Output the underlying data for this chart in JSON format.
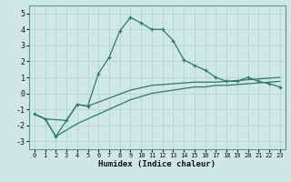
{
  "xlabel": "Humidex (Indice chaleur)",
  "bg_color": "#cfe8e4",
  "grid_color": "#b8d8d4",
  "line_color": "#2d7a6a",
  "xlim": [
    -0.5,
    23.5
  ],
  "ylim": [
    -3.5,
    5.5
  ],
  "xticks": [
    0,
    1,
    2,
    3,
    4,
    5,
    6,
    7,
    8,
    9,
    10,
    11,
    12,
    13,
    14,
    15,
    16,
    17,
    18,
    19,
    20,
    21,
    22,
    23
  ],
  "yticks": [
    -3,
    -2,
    -1,
    0,
    1,
    2,
    3,
    4,
    5
  ],
  "line1_x": [
    0,
    1,
    2,
    3,
    4,
    5,
    6,
    7,
    8,
    9,
    10,
    11,
    12,
    13,
    14,
    15,
    16,
    17,
    18,
    19,
    20,
    21,
    22,
    23
  ],
  "line1_y": [
    -1.3,
    -1.6,
    -2.7,
    -1.7,
    -0.7,
    -0.8,
    1.25,
    2.25,
    3.9,
    4.75,
    4.4,
    4.0,
    4.0,
    3.3,
    2.1,
    1.75,
    1.45,
    1.0,
    0.75,
    0.75,
    1.0,
    0.75,
    0.6,
    0.4
  ],
  "line2_x": [
    0,
    1,
    3,
    4,
    5,
    6,
    7,
    8,
    9,
    10,
    11,
    12,
    13,
    14,
    15,
    16,
    17,
    18,
    19,
    20,
    21,
    22,
    23
  ],
  "line2_y": [
    -1.3,
    -1.6,
    -1.7,
    -0.7,
    -0.8,
    -0.55,
    -0.3,
    -0.05,
    0.2,
    0.35,
    0.5,
    0.55,
    0.6,
    0.65,
    0.7,
    0.7,
    0.7,
    0.75,
    0.8,
    0.85,
    0.9,
    0.95,
    1.0
  ],
  "line3_x": [
    0,
    1,
    2,
    3,
    4,
    5,
    6,
    7,
    8,
    9,
    10,
    11,
    12,
    13,
    14,
    15,
    16,
    17,
    18,
    19,
    20,
    21,
    22,
    23
  ],
  "line3_y": [
    -1.3,
    -1.6,
    -2.7,
    -2.3,
    -1.9,
    -1.6,
    -1.3,
    -1.0,
    -0.7,
    -0.4,
    -0.2,
    0.0,
    0.1,
    0.2,
    0.3,
    0.4,
    0.4,
    0.5,
    0.5,
    0.55,
    0.6,
    0.65,
    0.7,
    0.75
  ]
}
